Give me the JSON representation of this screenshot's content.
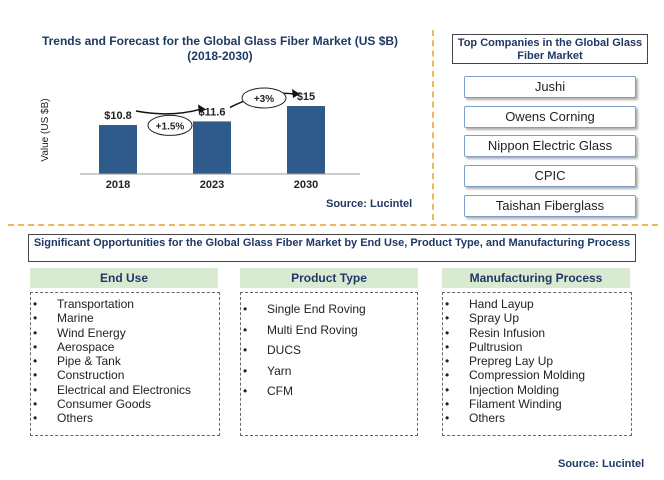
{
  "chart_title": "Trends and Forecast for the Global  Glass Fiber Market (US $B)",
  "chart_subtitle": "(2018-2030)",
  "chart_data": {
    "type": "bar",
    "categories": [
      "2018",
      "2023",
      "2030"
    ],
    "values": [
      10.8,
      11.6,
      15
    ],
    "value_labels": [
      "$10.8",
      "$11.6",
      "$15"
    ],
    "ylabel": "Value (US $B)",
    "growth_labels": [
      "+1.5%",
      "+3%"
    ],
    "bar_color": "#2e5b8a"
  },
  "chart_source": "Source: Lucintel",
  "top_companies": {
    "title": "Top  Companies in the Global Glass Fiber Market",
    "items": [
      "Jushi",
      "Owens Corning",
      "Nippon Electric Glass",
      "CPIC",
      "Taishan Fiberglass"
    ]
  },
  "opportunities": {
    "title": "Significant Opportunities for the Global Glass Fiber Market by End Use, Product Type, and Manufacturing Process",
    "end_use": {
      "title": "End Use",
      "items": [
        "Transportation",
        "Marine",
        "Wind Energy",
        "Aerospace",
        "Pipe & Tank",
        "Construction",
        "Electrical and Electronics",
        "Consumer Goods",
        "Others"
      ]
    },
    "product_type": {
      "title": "Product Type",
      "items": [
        "Single End Roving",
        "Multi End Roving",
        "DUCS",
        "Yarn",
        "CFM"
      ]
    },
    "manufacturing": {
      "title": "Manufacturing Process",
      "items": [
        "Hand Layup",
        "Spray Up",
        "Resin Infusion",
        "Pultrusion",
        "Prepreg Lay Up",
        "Compression Molding",
        "Injection Molding",
        "Filament Winding",
        "Others"
      ]
    }
  },
  "footer_source": "Source: Lucintel"
}
